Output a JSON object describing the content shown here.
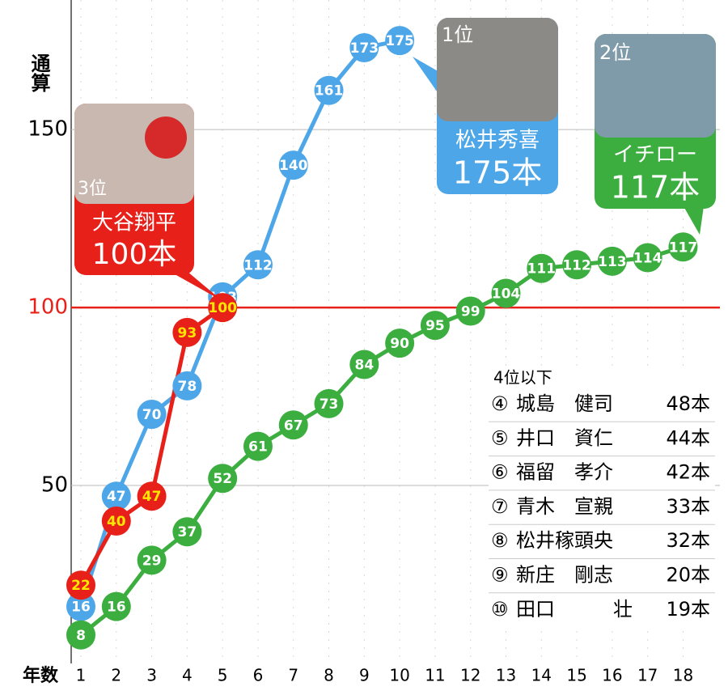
{
  "chart_data": {
    "type": "line",
    "y_label": "通算",
    "x_label": "年数",
    "x": [
      1,
      2,
      3,
      4,
      5,
      6,
      7,
      8,
      9,
      10,
      11,
      12,
      13,
      14,
      15,
      16,
      17,
      18
    ],
    "xlim": [
      0.726,
      19.04
    ],
    "xticks": [
      1,
      2,
      3,
      4,
      5,
      6,
      7,
      8,
      9,
      10,
      11,
      12,
      13,
      14,
      15,
      16,
      17,
      18
    ],
    "ylim": [
      0,
      186.4
    ],
    "yticks": [
      50,
      100,
      150
    ],
    "grid": true,
    "reference_line": {
      "value": 100,
      "color": "#e8201a"
    },
    "series": [
      {
        "name": "松井秀喜",
        "color": "#4da6e8",
        "values": [
          16,
          47,
          70,
          78,
          103,
          112,
          140,
          161,
          173,
          175,
          null,
          null,
          null,
          null,
          null,
          null,
          null,
          null
        ]
      },
      {
        "name": "イチロー",
        "color": "#3cae3f",
        "values": [
          8,
          16,
          29,
          37,
          52,
          61,
          67,
          73,
          84,
          90,
          95,
          99,
          104,
          111,
          112,
          113,
          114,
          117
        ]
      },
      {
        "name": "大谷翔平",
        "color": "#e8201a",
        "values": [
          22,
          40,
          47,
          93,
          100,
          null,
          null,
          null,
          null,
          null,
          null,
          null,
          null,
          null,
          null,
          null,
          null,
          null
        ]
      }
    ],
    "callouts": [
      {
        "rank": "1位",
        "total": "175本"
      },
      {
        "rank": "2位",
        "total": "117本"
      },
      {
        "rank": "3位",
        "total": "100本"
      }
    ],
    "others": {
      "title": "4位以下",
      "rows": [
        {
          "rank": "④",
          "name": "城島　健司",
          "total": "48本"
        },
        {
          "rank": "⑤",
          "name": "井口　資仁",
          "total": "44本"
        },
        {
          "rank": "⑥",
          "name": "福留　孝介",
          "total": "42本"
        },
        {
          "rank": "⑦",
          "name": "青木　宣親",
          "total": "33本"
        },
        {
          "rank": "⑧",
          "name": "松井稼頭央",
          "total": "32本"
        },
        {
          "rank": "⑨",
          "name": "新庄　剛志",
          "total": "20本"
        },
        {
          "rank": "⑩",
          "name": "田口　　　壮",
          "total": "19本"
        }
      ]
    }
  }
}
